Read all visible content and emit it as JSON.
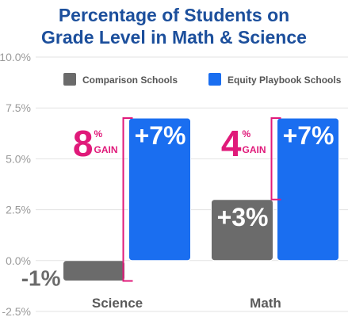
{
  "title_lines": [
    "Percentage of Students on",
    "Grade Level in Math & Science"
  ],
  "colors": {
    "title": "#1c4f9c",
    "comparison": "#6b6b6b",
    "equity": "#1a6ef0",
    "gain": "#e01a7a",
    "tick": "#9a9a9a",
    "category": "#5a5a5a"
  },
  "chart_data": {
    "type": "bar",
    "title": "Percentage of Students on Grade Level in Math & Science",
    "categories": [
      "Science",
      "Math"
    ],
    "series": [
      {
        "name": "Comparison Schools",
        "values": [
          -1,
          3
        ],
        "labels": [
          "-1%",
          "+3%"
        ]
      },
      {
        "name": "Equity Playbook Schools",
        "values": [
          7,
          7
        ],
        "labels": [
          "+7%",
          "+7%"
        ]
      }
    ],
    "ylim": [
      -2.5,
      10
    ],
    "yticks": [
      -2.5,
      0,
      2.5,
      5,
      7.5,
      10
    ],
    "ytick_labels": [
      "-2.5%",
      "0.0%",
      "2.5%",
      "5.0%",
      "7.5%",
      "10.0%"
    ],
    "gains": [
      {
        "category": "Science",
        "number": "8",
        "percent": "%",
        "word": "GAIN"
      },
      {
        "category": "Math",
        "number": "4",
        "percent": "%",
        "word": "GAIN"
      }
    ],
    "legend_position": "top",
    "grid": true
  }
}
